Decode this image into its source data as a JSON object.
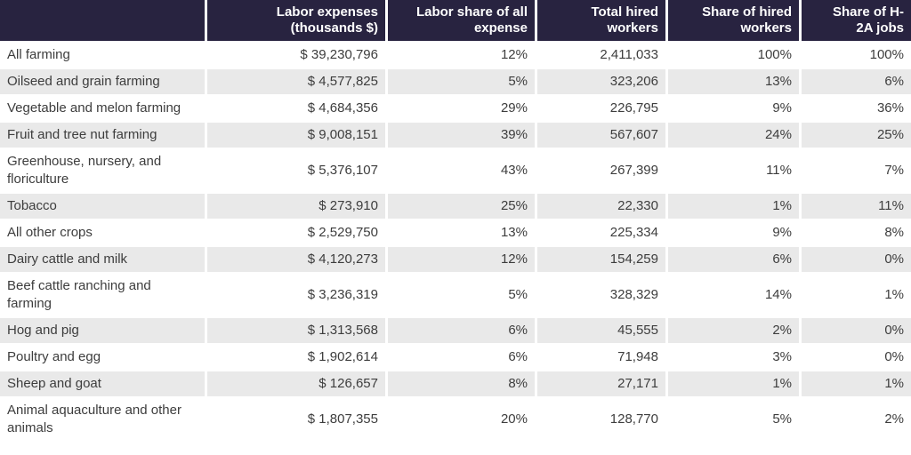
{
  "colors": {
    "header_bg": "#282340",
    "header_text": "#ffffff",
    "row_alt_bg": "#e9e9e9",
    "body_text": "#3d3d3d"
  },
  "chart_data": {
    "type": "table",
    "columns": [
      "",
      "Labor expenses (thousands $)",
      "Labor share of all expense",
      "Total hired workers",
      "Share of hired workers",
      "Share of H-2A jobs"
    ],
    "rows": [
      {
        "label": "All farming",
        "values": [
          "$ 39,230,796",
          "12%",
          "2,411,033",
          "100%",
          "100%"
        ]
      },
      {
        "label": "Oilseed and grain farming",
        "values": [
          "$ 4,577,825",
          "5%",
          "323,206",
          "13%",
          "6%"
        ]
      },
      {
        "label": "Vegetable and melon farming",
        "values": [
          "$ 4,684,356",
          "29%",
          "226,795",
          "9%",
          "36%"
        ]
      },
      {
        "label": "Fruit and tree nut farming",
        "values": [
          "$ 9,008,151",
          "39%",
          "567,607",
          "24%",
          "25%"
        ]
      },
      {
        "label": "Greenhouse, nursery, and floriculture",
        "values": [
          "$ 5,376,107",
          "43%",
          "267,399",
          "11%",
          "7%"
        ]
      },
      {
        "label": "Tobacco",
        "values": [
          "$ 273,910",
          "25%",
          "22,330",
          "1%",
          "11%"
        ]
      },
      {
        "label": "All other crops",
        "values": [
          "$ 2,529,750",
          "13%",
          "225,334",
          "9%",
          "8%"
        ]
      },
      {
        "label": "Dairy cattle and milk",
        "values": [
          "$ 4,120,273",
          "12%",
          "154,259",
          "6%",
          "0%"
        ]
      },
      {
        "label": "Beef cattle ranching and farming",
        "values": [
          "$ 3,236,319",
          "5%",
          "328,329",
          "14%",
          "1%"
        ]
      },
      {
        "label": "Hog and pig",
        "values": [
          "$ 1,313,568",
          "6%",
          "45,555",
          "2%",
          "0%"
        ]
      },
      {
        "label": "Poultry and egg",
        "values": [
          "$ 1,902,614",
          "6%",
          "71,948",
          "3%",
          "0%"
        ]
      },
      {
        "label": "Sheep and goat",
        "values": [
          "$ 126,657",
          "8%",
          "27,171",
          "1%",
          "1%"
        ]
      },
      {
        "label": "Animal aquaculture and other animals",
        "values": [
          "$ 1,807,355",
          "20%",
          "128,770",
          "5%",
          "2%"
        ]
      }
    ]
  }
}
